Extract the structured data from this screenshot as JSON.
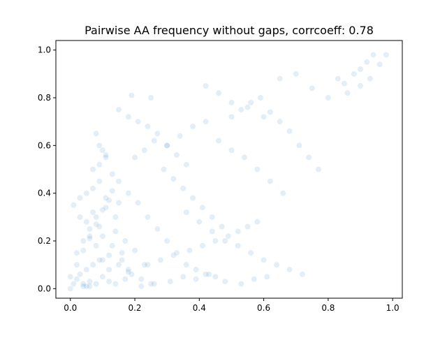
{
  "chart_data": {
    "type": "scatter",
    "title": "Pairwise AA frequency without gaps, corrcoeff: 0.78",
    "xlabel": "",
    "ylabel": "",
    "xlim": [
      -0.045,
      1.03
    ],
    "ylim": [
      -0.04,
      1.04
    ],
    "x_ticks": [
      "0.0",
      "0.2",
      "0.4",
      "0.6",
      "0.8",
      "1.0"
    ],
    "y_ticks": [
      "0.0",
      "0.2",
      "0.4",
      "0.6",
      "0.8",
      "1.0"
    ],
    "grid": false,
    "legend": "none",
    "marker_color": "#1f77b4",
    "marker_alpha": 0.12,
    "series": [
      {
        "x": [
          0.0,
          0.01,
          0.02,
          0.03,
          0.05,
          0.07,
          0.09,
          0.12,
          0.15,
          0.18,
          0.02,
          0.04,
          0.06,
          0.08,
          0.1,
          0.13,
          0.16,
          0.19,
          0.22,
          0.25,
          0.01,
          0.03,
          0.05,
          0.07,
          0.09,
          0.11,
          0.14,
          0.17,
          0.2,
          0.23,
          0.0,
          0.02,
          0.04,
          0.06,
          0.08,
          0.1,
          0.12,
          0.14,
          0.16,
          0.18,
          0.05,
          0.07,
          0.09,
          0.11,
          0.13,
          0.15,
          0.03,
          0.06,
          0.08,
          0.1,
          0.12,
          0.04,
          0.06,
          0.08,
          0.1,
          0.07,
          0.09,
          0.11,
          0.13,
          0.15,
          0.18,
          0.21,
          0.24,
          0.27,
          0.3,
          0.33,
          0.36,
          0.39,
          0.42,
          0.45,
          0.2,
          0.23,
          0.26,
          0.29,
          0.32,
          0.35,
          0.38,
          0.41,
          0.44,
          0.47,
          0.3,
          0.34,
          0.38,
          0.42,
          0.46,
          0.5,
          0.54,
          0.58,
          0.62,
          0.66,
          0.36,
          0.4,
          0.44,
          0.48,
          0.52,
          0.56,
          0.6,
          0.64,
          0.68,
          0.72,
          0.5,
          0.53,
          0.56,
          0.59,
          0.62,
          0.65,
          0.68,
          0.71,
          0.74,
          0.77,
          0.42,
          0.46,
          0.5,
          0.55,
          0.6,
          0.65,
          0.7,
          0.75,
          0.8,
          0.85,
          0.88,
          0.9,
          0.92,
          0.94,
          0.96,
          0.98,
          0.93,
          0.9,
          0.86,
          0.83,
          0.08,
          0.09,
          0.1,
          0.11,
          0.05,
          0.04,
          0.06,
          0.12,
          0.14,
          0.17,
          0.22,
          0.26,
          0.31,
          0.35,
          0.39,
          0.43,
          0.48,
          0.53,
          0.57,
          0.61,
          0.24,
          0.28,
          0.32,
          0.37,
          0.41,
          0.45,
          0.49,
          0.52,
          0.55,
          0.58,
          0.15,
          0.18,
          0.21,
          0.24,
          0.27,
          0.3,
          0.33,
          0.36,
          0.19,
          0.25
        ],
        "y": [
          0.0,
          0.02,
          0.04,
          0.06,
          0.08,
          0.1,
          0.12,
          0.14,
          0.1,
          0.08,
          0.15,
          0.2,
          0.25,
          0.3,
          0.22,
          0.18,
          0.12,
          0.06,
          0.04,
          0.02,
          0.35,
          0.38,
          0.28,
          0.32,
          0.26,
          0.34,
          0.3,
          0.2,
          0.16,
          0.1,
          0.05,
          0.1,
          0.16,
          0.21,
          0.27,
          0.33,
          0.37,
          0.24,
          0.15,
          0.07,
          0.4,
          0.42,
          0.45,
          0.38,
          0.41,
          0.36,
          0.3,
          0.22,
          0.18,
          0.12,
          0.08,
          0.01,
          0.03,
          0.02,
          0.05,
          0.5,
          0.52,
          0.55,
          0.48,
          0.45,
          0.4,
          0.36,
          0.3,
          0.25,
          0.2,
          0.15,
          0.1,
          0.08,
          0.06,
          0.05,
          0.55,
          0.58,
          0.62,
          0.5,
          0.46,
          0.42,
          0.38,
          0.34,
          0.3,
          0.26,
          0.6,
          0.64,
          0.68,
          0.7,
          0.62,
          0.58,
          0.55,
          0.5,
          0.45,
          0.4,
          0.32,
          0.28,
          0.24,
          0.2,
          0.18,
          0.15,
          0.12,
          0.1,
          0.08,
          0.06,
          0.72,
          0.75,
          0.78,
          0.8,
          0.74,
          0.7,
          0.66,
          0.6,
          0.55,
          0.5,
          0.85,
          0.82,
          0.78,
          0.76,
          0.72,
          0.88,
          0.9,
          0.84,
          0.8,
          0.86,
          0.9,
          0.92,
          0.95,
          0.98,
          0.94,
          0.98,
          0.88,
          0.85,
          0.82,
          0.88,
          0.65,
          0.6,
          0.58,
          0.56,
          0.01,
          0.02,
          0.01,
          0.03,
          0.02,
          0.04,
          0.01,
          0.02,
          0.03,
          0.05,
          0.04,
          0.06,
          0.03,
          0.02,
          0.04,
          0.05,
          0.1,
          0.12,
          0.14,
          0.16,
          0.18,
          0.2,
          0.22,
          0.24,
          0.26,
          0.28,
          0.75,
          0.72,
          0.7,
          0.68,
          0.65,
          0.6,
          0.56,
          0.52,
          0.81,
          0.8
        ]
      }
    ]
  }
}
